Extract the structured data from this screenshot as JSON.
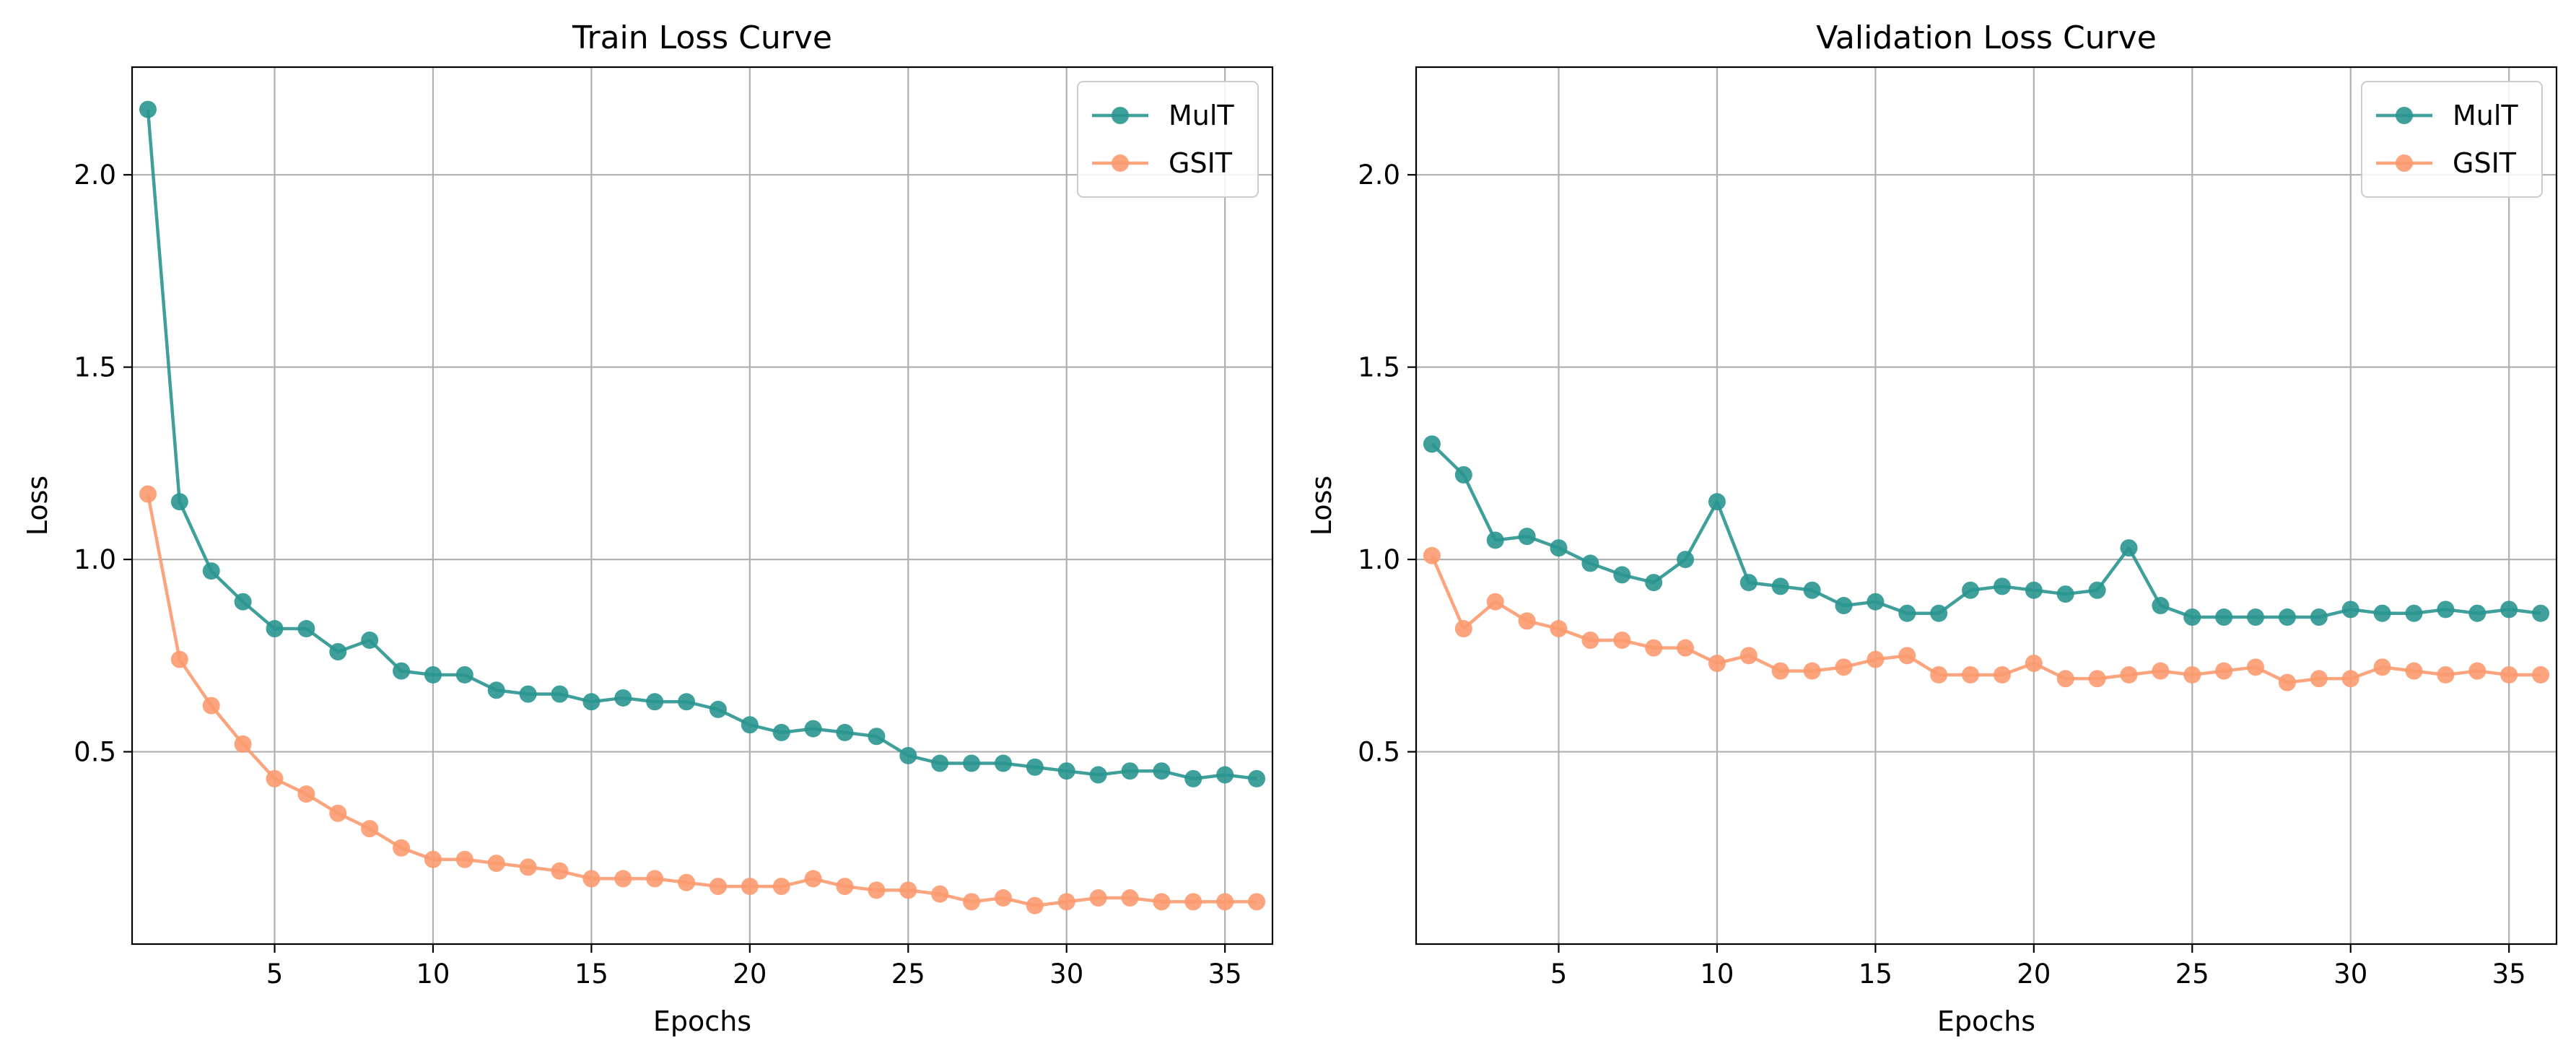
{
  "chart_data": [
    {
      "type": "line",
      "title": "Train Loss Curve",
      "xlabel": "Epochs",
      "ylabel": "Loss",
      "xlim": [
        0.5,
        36.5
      ],
      "ylim": [
        0.0,
        2.28
      ],
      "xticks": [
        5,
        10,
        15,
        20,
        25,
        30,
        35
      ],
      "xtick_labels": [
        "5",
        "10",
        "15",
        "20",
        "25",
        "30",
        "35"
      ],
      "yticks": [
        0.5,
        1.0,
        1.5,
        2.0
      ],
      "ytick_labels": [
        "0.5",
        "1.0",
        "1.5",
        "2.0"
      ],
      "grid": true,
      "legend_position": "top-right",
      "x": [
        1,
        2,
        3,
        4,
        5,
        6,
        7,
        8,
        9,
        10,
        11,
        12,
        13,
        14,
        15,
        16,
        17,
        18,
        19,
        20,
        21,
        22,
        23,
        24,
        25,
        26,
        27,
        28,
        29,
        30,
        31,
        32,
        33,
        34,
        35,
        36
      ],
      "series": [
        {
          "name": "MulT",
          "color": "#2a9590",
          "values": [
            2.17,
            1.15,
            0.97,
            0.89,
            0.82,
            0.82,
            0.76,
            0.79,
            0.71,
            0.7,
            0.7,
            0.66,
            0.65,
            0.65,
            0.63,
            0.64,
            0.63,
            0.63,
            0.61,
            0.57,
            0.55,
            0.56,
            0.55,
            0.54,
            0.49,
            0.47,
            0.47,
            0.47,
            0.46,
            0.45,
            0.44,
            0.45,
            0.45,
            0.43,
            0.44,
            0.43
          ]
        },
        {
          "name": "GSIT",
          "color": "#fb9a6f",
          "values": [
            1.17,
            0.74,
            0.62,
            0.52,
            0.43,
            0.39,
            0.34,
            0.3,
            0.25,
            0.22,
            0.22,
            0.21,
            0.2,
            0.19,
            0.17,
            0.17,
            0.17,
            0.16,
            0.15,
            0.15,
            0.15,
            0.17,
            0.15,
            0.14,
            0.14,
            0.13,
            0.11,
            0.12,
            0.1,
            0.11,
            0.12,
            0.12,
            0.11,
            0.11,
            0.11,
            0.11
          ]
        }
      ]
    },
    {
      "type": "line",
      "title": "Validation Loss Curve",
      "xlabel": "Epochs",
      "ylabel": "Loss",
      "xlim": [
        0.5,
        36.5
      ],
      "ylim": [
        0.0,
        2.28
      ],
      "xticks": [
        5,
        10,
        15,
        20,
        25,
        30,
        35
      ],
      "xtick_labels": [
        "5",
        "10",
        "15",
        "20",
        "25",
        "30",
        "35"
      ],
      "yticks": [
        0.5,
        1.0,
        1.5,
        2.0
      ],
      "ytick_labels": [
        "0.5",
        "1.0",
        "1.5",
        "2.0"
      ],
      "grid": true,
      "legend_position": "top-right",
      "x": [
        1,
        2,
        3,
        4,
        5,
        6,
        7,
        8,
        9,
        10,
        11,
        12,
        13,
        14,
        15,
        16,
        17,
        18,
        19,
        20,
        21,
        22,
        23,
        24,
        25,
        26,
        27,
        28,
        29,
        30,
        31,
        32,
        33,
        34,
        35,
        36
      ],
      "series": [
        {
          "name": "MulT",
          "color": "#2a9590",
          "values": [
            1.3,
            1.22,
            1.05,
            1.06,
            1.03,
            0.99,
            0.96,
            0.94,
            1.0,
            1.15,
            0.94,
            0.93,
            0.92,
            0.88,
            0.89,
            0.86,
            0.86,
            0.92,
            0.93,
            0.92,
            0.91,
            0.92,
            1.03,
            0.88,
            0.85,
            0.85,
            0.85,
            0.85,
            0.85,
            0.87,
            0.86,
            0.86,
            0.87,
            0.86,
            0.87,
            0.86
          ]
        },
        {
          "name": "GSIT",
          "color": "#fb9a6f",
          "values": [
            1.01,
            0.82,
            0.89,
            0.84,
            0.82,
            0.79,
            0.79,
            0.77,
            0.77,
            0.73,
            0.75,
            0.71,
            0.71,
            0.72,
            0.74,
            0.75,
            0.7,
            0.7,
            0.7,
            0.73,
            0.69,
            0.69,
            0.7,
            0.71,
            0.7,
            0.71,
            0.72,
            0.68,
            0.69,
            0.69,
            0.72,
            0.71,
            0.7,
            0.71,
            0.7,
            0.7
          ]
        }
      ]
    }
  ]
}
